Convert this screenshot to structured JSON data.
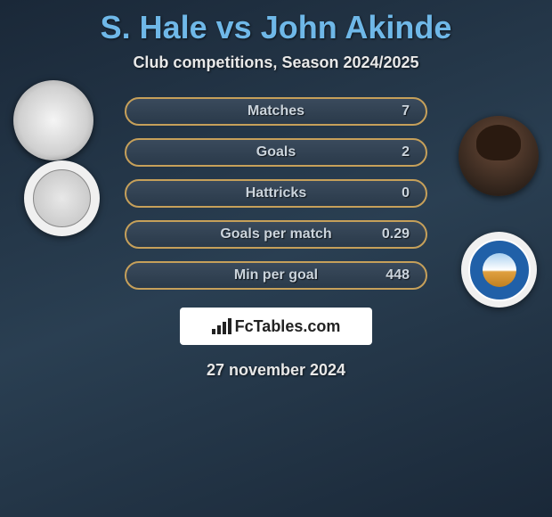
{
  "title": "S. Hale vs John Akinde",
  "subtitle": "Club competitions, Season 2024/2025",
  "date": "27 november 2024",
  "logo": {
    "brand": "FcTables.com"
  },
  "colors": {
    "title": "#6fb8e8",
    "text": "#e8e8e8",
    "stat_text": "#cbd4dc",
    "pill_border": "#c6a05a",
    "bg_gradient": [
      "#1a2838",
      "#2a3f52",
      "#1a2838"
    ]
  },
  "stats": [
    {
      "label": "Matches",
      "value": "7"
    },
    {
      "label": "Goals",
      "value": "2"
    },
    {
      "label": "Hattricks",
      "value": "0"
    },
    {
      "label": "Goals per match",
      "value": "0.29"
    },
    {
      "label": "Min per goal",
      "value": "448"
    }
  ],
  "players": {
    "left": {
      "name": "S. Hale"
    },
    "right": {
      "name": "John Akinde"
    }
  }
}
